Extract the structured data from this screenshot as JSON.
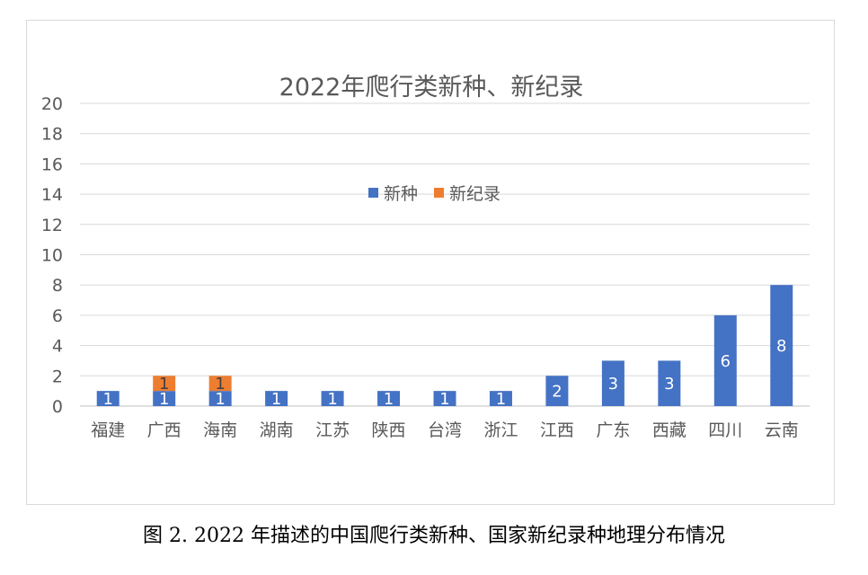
{
  "chart_data": {
    "type": "bar",
    "stacked": true,
    "title": "2022年爬行类新种、新纪录",
    "xlabel": "",
    "ylabel": "",
    "ylim": [
      0,
      20
    ],
    "yticks": [
      0,
      2,
      4,
      6,
      8,
      10,
      12,
      14,
      16,
      18,
      20
    ],
    "grid": true,
    "legend_position": "top-center",
    "categories": [
      "福建",
      "广西",
      "海南",
      "湖南",
      "江苏",
      "陕西",
      "台湾",
      "浙江",
      "江西",
      "广东",
      "西藏",
      "四川",
      "云南"
    ],
    "series": [
      {
        "name": "新种",
        "color": "#4472C4",
        "values": [
          1,
          1,
          1,
          1,
          1,
          1,
          1,
          1,
          2,
          3,
          3,
          6,
          8
        ]
      },
      {
        "name": "新纪录",
        "color": "#ED7D31",
        "values": [
          0,
          1,
          1,
          0,
          0,
          0,
          0,
          0,
          0,
          0,
          0,
          0,
          0
        ]
      }
    ]
  },
  "caption": "图 2. 2022 年描述的中国爬行类新种、国家新纪录种地理分布情况"
}
